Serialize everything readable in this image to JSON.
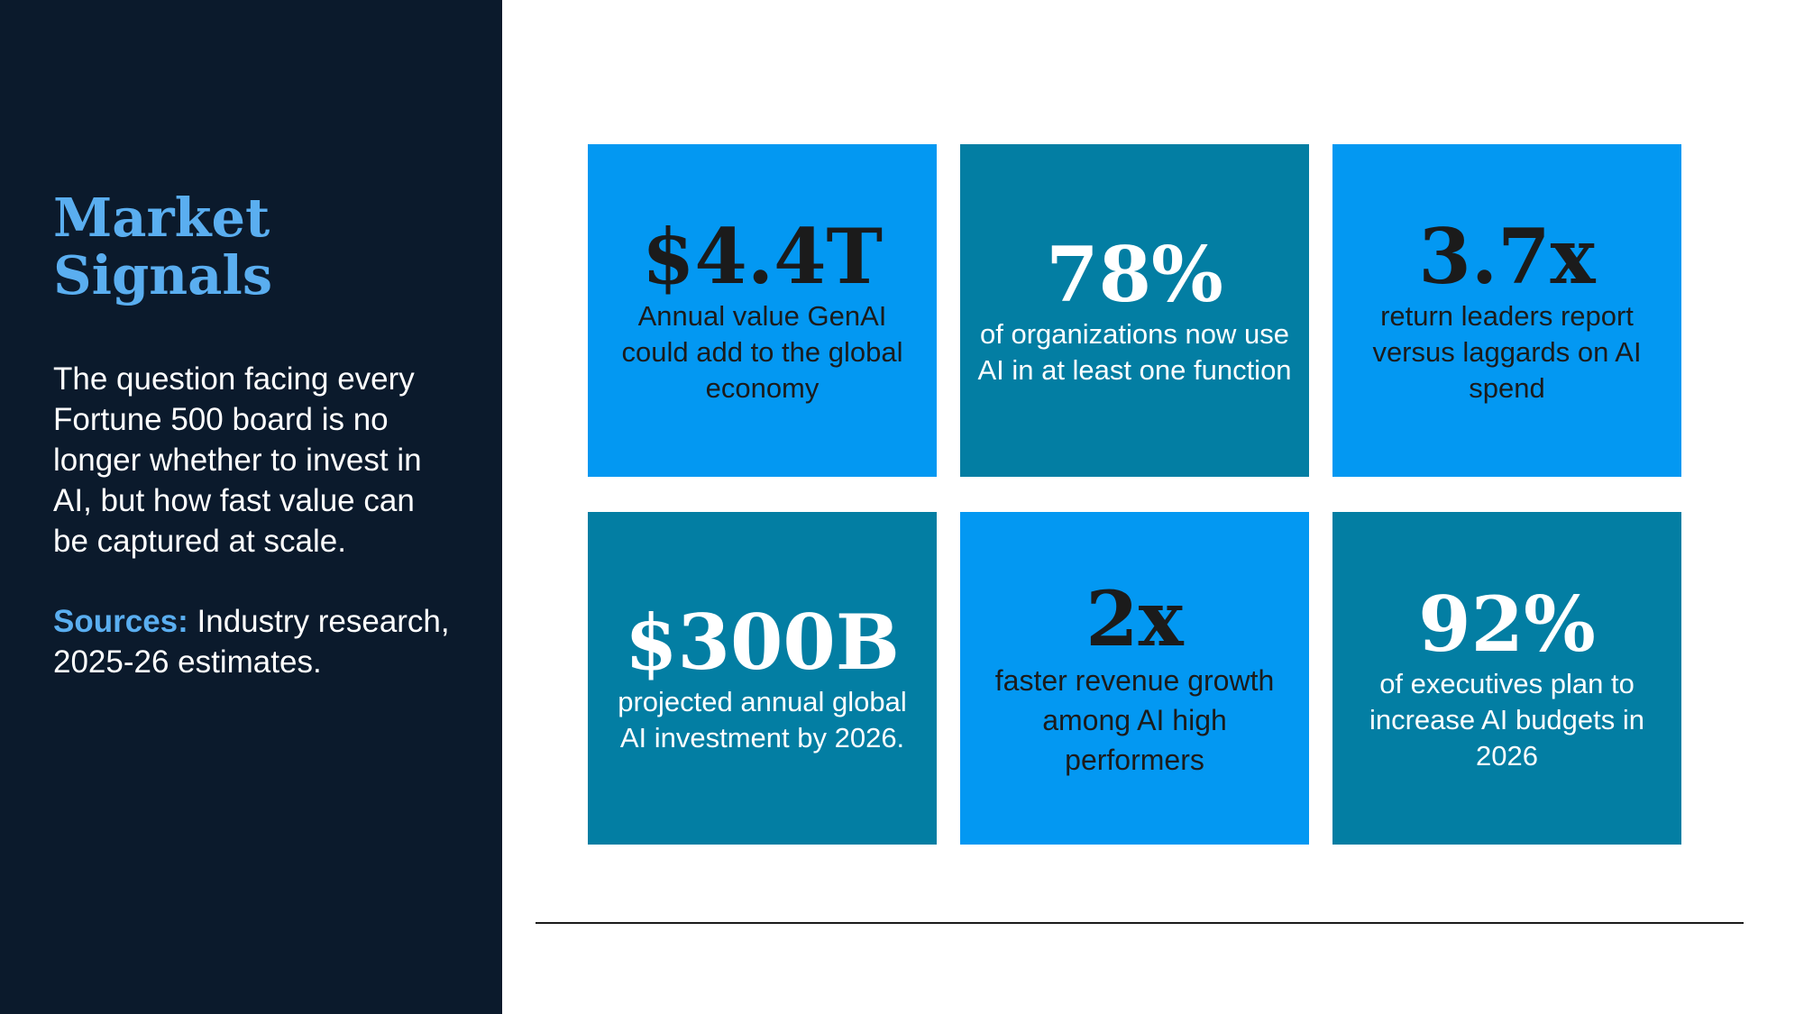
{
  "sidebar": {
    "title_line1": "Market",
    "title_line2": "Signals",
    "intro": "The question facing every Fortune 500 board is no longer whether to invest in AI, but how fast value can be captured at scale.",
    "sources_label": "Sources:",
    "sources_text": " Industry research, 2025-26 estimates."
  },
  "stats": [
    {
      "value": "$4.4T",
      "caption": "Annual value GenAI could add to the global economy"
    },
    {
      "value": "78%",
      "caption": "of organizations now use AI in at least one function"
    },
    {
      "value": "3.7x",
      "caption": "return leaders report versus laggards on AI spend"
    },
    {
      "value": "$300B",
      "caption": "projected annual global AI investment by 2026."
    },
    {
      "value": "2x",
      "caption": "faster revenue growth among AI high performers"
    },
    {
      "value": "92%",
      "caption": "of executives plan to increase AI budgets in 2026"
    }
  ],
  "colors": {
    "sidebar_bg": "#0b1a2c",
    "accent": "#5aaef0",
    "card_bright": "#0398f2",
    "card_teal": "#037ea3"
  }
}
